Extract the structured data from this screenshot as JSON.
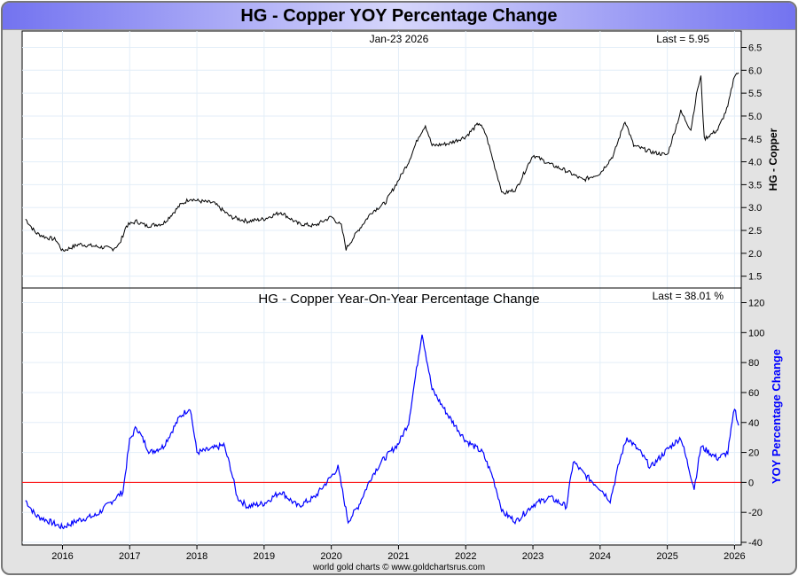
{
  "title": "HG  -  Copper YOY Percentage Change",
  "footer": "world gold charts © www.goldchartsrus.com",
  "chart_data": [
    {
      "type": "line",
      "title": "",
      "date_label": "Jan-23  2026",
      "last_label": "Last = 5.95",
      "ylabel": "HG  - Copper",
      "ylim": [
        1.3,
        6.8
      ],
      "yticks": [
        1.5,
        2.0,
        2.5,
        3.0,
        3.5,
        4.0,
        4.5,
        5.0,
        5.5,
        6.0,
        6.5
      ],
      "xlim": [
        2015.4,
        2026.1
      ],
      "color": "#000000",
      "x": [
        2015.45,
        2015.6,
        2015.75,
        2015.9,
        2016.0,
        2016.25,
        2016.5,
        2016.75,
        2016.85,
        2016.95,
        2017.1,
        2017.25,
        2017.5,
        2017.75,
        2017.9,
        2018.0,
        2018.25,
        2018.5,
        2018.75,
        2019.0,
        2019.25,
        2019.5,
        2019.75,
        2020.0,
        2020.15,
        2020.22,
        2020.4,
        2020.6,
        2020.8,
        2021.0,
        2021.15,
        2021.3,
        2021.4,
        2021.5,
        2021.75,
        2022.0,
        2022.2,
        2022.3,
        2022.45,
        2022.55,
        2022.75,
        2023.0,
        2023.25,
        2023.5,
        2023.75,
        2024.0,
        2024.2,
        2024.37,
        2024.5,
        2024.6,
        2024.8,
        2025.0,
        2025.2,
        2025.35,
        2025.45,
        2025.5,
        2025.55,
        2025.75,
        2025.9,
        2026.0,
        2026.06
      ],
      "y": [
        2.75,
        2.45,
        2.35,
        2.3,
        2.05,
        2.2,
        2.15,
        2.1,
        2.2,
        2.6,
        2.7,
        2.6,
        2.65,
        3.05,
        3.2,
        3.15,
        3.1,
        2.8,
        2.7,
        2.75,
        2.9,
        2.65,
        2.6,
        2.8,
        2.6,
        2.1,
        2.5,
        2.9,
        3.1,
        3.6,
        4.0,
        4.55,
        4.8,
        4.35,
        4.4,
        4.55,
        4.85,
        4.6,
        3.8,
        3.3,
        3.4,
        4.15,
        3.95,
        3.8,
        3.6,
        3.75,
        4.15,
        4.9,
        4.35,
        4.3,
        4.2,
        4.15,
        5.1,
        4.7,
        5.6,
        5.85,
        4.5,
        4.7,
        5.2,
        5.9,
        5.95
      ]
    },
    {
      "type": "line",
      "title": "HG  -  Copper Year-On-Year Percentage Change",
      "last_label": "Last = 38.01 %",
      "ylabel": "YOY Percentage Change",
      "ylim": [
        -40,
        128
      ],
      "yticks": [
        -40,
        -20,
        0,
        20,
        40,
        60,
        80,
        100,
        120
      ],
      "xlim": [
        2015.4,
        2026.1
      ],
      "xticks": [
        "2016",
        "2017",
        "2018",
        "2019",
        "2020",
        "2021",
        "2022",
        "2023",
        "2024",
        "2025",
        "2026"
      ],
      "color": "#0000ff",
      "reference_line": {
        "y": 0,
        "color": "#ff0000"
      },
      "x": [
        2015.45,
        2015.6,
        2015.75,
        2016.0,
        2016.25,
        2016.5,
        2016.75,
        2016.9,
        2017.0,
        2017.1,
        2017.3,
        2017.5,
        2017.75,
        2017.9,
        2018.0,
        2018.2,
        2018.4,
        2018.5,
        2018.6,
        2018.75,
        2019.0,
        2019.25,
        2019.5,
        2019.75,
        2020.0,
        2020.1,
        2020.25,
        2020.4,
        2020.6,
        2020.75,
        2021.0,
        2021.15,
        2021.25,
        2021.35,
        2021.5,
        2021.75,
        2022.0,
        2022.25,
        2022.4,
        2022.55,
        2022.75,
        2023.0,
        2023.25,
        2023.5,
        2023.6,
        2023.75,
        2024.0,
        2024.15,
        2024.3,
        2024.4,
        2024.6,
        2024.75,
        2025.0,
        2025.2,
        2025.4,
        2025.5,
        2025.75,
        2025.9,
        2026.0,
        2026.06
      ],
      "y": [
        -12,
        -22,
        -25,
        -30,
        -25,
        -22,
        -12,
        -6,
        28,
        37,
        20,
        24,
        44,
        50,
        20,
        22,
        25,
        10,
        -10,
        -16,
        -14,
        -6,
        -16,
        -10,
        4,
        10,
        -26,
        -16,
        4,
        14,
        26,
        40,
        70,
        100,
        62,
        44,
        28,
        20,
        4,
        -20,
        -26,
        -15,
        -10,
        -16,
        14,
        6,
        -4,
        -12,
        16,
        30,
        20,
        10,
        22,
        30,
        -4,
        24,
        16,
        20,
        50,
        38
      ]
    }
  ]
}
